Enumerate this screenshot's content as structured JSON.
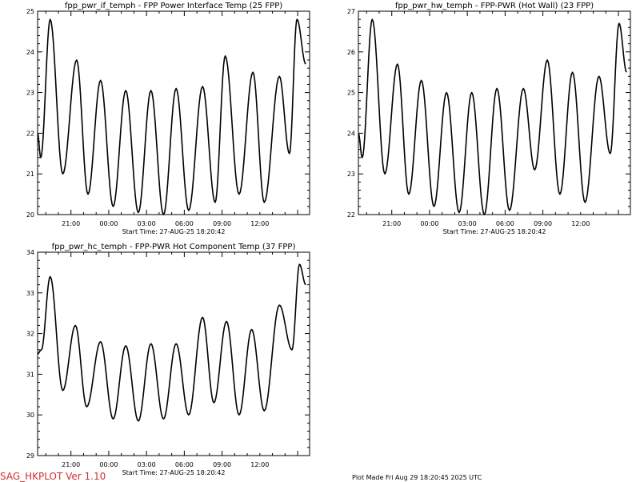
{
  "footer": {
    "program": "SAG_HKPLOT  Ver 1.10",
    "plot_made": "Plot Made Fri Aug 29 18:20:45 2025 UTC"
  },
  "chart_data": [
    {
      "type": "line",
      "title": "fpp_pwr_if_temph - FPP Power Interface Temp (25 FPP)",
      "subtitle": "Start Time: 27-AUG-25  18:20:42",
      "x_ticks": [
        "21:00",
        "00:00",
        "03:00",
        "06:00",
        "09:00",
        "12:00"
      ],
      "y_ticks": [
        "20",
        "21",
        "22",
        "23",
        "24",
        "25"
      ],
      "ylim": [
        20,
        25
      ],
      "x_hours": [
        0,
        0.25,
        1.0,
        2.0,
        3.1,
        4.0,
        5.0,
        6.0,
        7.0,
        8.0,
        9.0,
        10.0,
        11.0,
        12.0,
        13.1,
        14.1,
        14.9,
        16.0,
        17.1,
        18.0,
        19.2,
        20.0,
        20.6,
        21.3
      ],
      "values": [
        22.0,
        21.4,
        24.8,
        21.0,
        23.8,
        20.5,
        23.3,
        20.2,
        23.05,
        20.05,
        23.05,
        20.0,
        23.1,
        20.1,
        23.15,
        20.3,
        23.9,
        20.5,
        23.5,
        20.3,
        23.4,
        21.5,
        24.8,
        23.7
      ]
    },
    {
      "type": "line",
      "title": "fpp_pwr_hw_temph - FPP-PWR (Hot Wall) (23 FPP)",
      "subtitle": "Start Time: 27-AUG-25  18:20:42",
      "x_ticks": [
        "21:00",
        "00:00",
        "03:00",
        "06:00",
        "09:00",
        "12:00"
      ],
      "y_ticks": [
        "22",
        "23",
        "24",
        "25",
        "26",
        "27"
      ],
      "ylim": [
        22,
        27
      ],
      "x_hours": [
        0,
        0.3,
        1.1,
        2.1,
        3.1,
        4.0,
        5.0,
        6.0,
        7.0,
        8.0,
        9.0,
        10.0,
        11.0,
        12.0,
        13.1,
        14.0,
        15.0,
        16.0,
        17.0,
        18.0,
        19.1,
        20.0,
        20.7,
        21.3
      ],
      "values": [
        24.0,
        23.4,
        26.8,
        23.0,
        25.7,
        22.5,
        25.3,
        22.2,
        25.0,
        22.05,
        25.0,
        22.0,
        25.1,
        22.1,
        25.1,
        23.1,
        25.8,
        22.5,
        25.5,
        22.3,
        25.4,
        23.5,
        26.7,
        25.5
      ]
    },
    {
      "type": "line",
      "title": "fpp_pwr_hc_temph - FPP-PWR Hot Component Temp (37 FPP)",
      "subtitle": "Start Time: 27-AUG-25  18:20:42",
      "x_ticks": [
        "21:00",
        "00:00",
        "03:00",
        "06:00",
        "09:00",
        "12:00"
      ],
      "y_ticks": [
        "29",
        "30",
        "31",
        "32",
        "33",
        "34"
      ],
      "ylim": [
        29,
        34
      ],
      "x_hours": [
        0,
        0.3,
        1.0,
        2.0,
        3.0,
        3.9,
        5.0,
        6.0,
        7.0,
        8.0,
        9.0,
        10.0,
        11.0,
        12.0,
        13.1,
        14.0,
        15.0,
        16.0,
        17.0,
        18.0,
        19.2,
        20.2,
        20.8,
        21.3
      ],
      "values": [
        31.5,
        31.6,
        33.4,
        30.6,
        32.2,
        30.2,
        31.8,
        29.9,
        31.7,
        29.85,
        31.75,
        29.9,
        31.75,
        30.0,
        32.4,
        30.3,
        32.3,
        30.0,
        32.1,
        30.1,
        32.7,
        31.6,
        33.7,
        33.2
      ]
    }
  ]
}
